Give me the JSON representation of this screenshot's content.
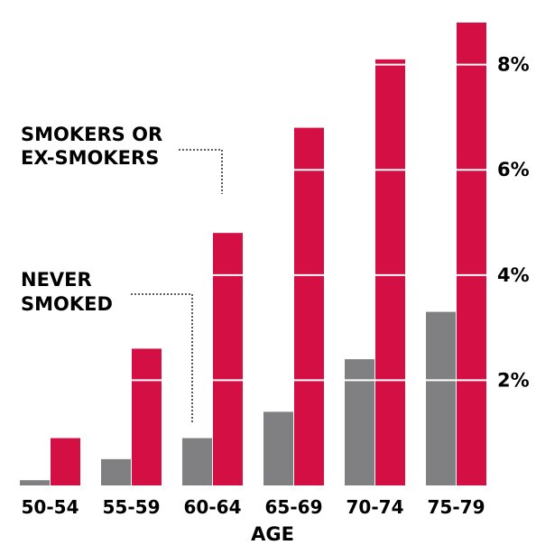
{
  "chart_data": {
    "type": "bar",
    "title": "",
    "xlabel": "AGE",
    "ylabel": "",
    "categories": [
      "50-54",
      "55-59",
      "60-64",
      "65-69",
      "70-74",
      "75-79"
    ],
    "series": [
      {
        "name": "NEVER SMOKED",
        "values": [
          0.1,
          0.5,
          0.9,
          1.4,
          2.4,
          3.3
        ],
        "color": "#808083"
      },
      {
        "name": "SMOKERS OR EX-SMOKERS",
        "values": [
          0.9,
          2.6,
          4.8,
          6.8,
          8.1,
          8.8
        ],
        "color": "#d40f44"
      }
    ],
    "ylim": [
      0,
      8.8
    ],
    "yticks": [
      2,
      4,
      6,
      8
    ],
    "ytick_labels": [
      "2%",
      "4%",
      "6%",
      "8%"
    ],
    "grid": false,
    "gridlines_on_bars": "white",
    "annotations": [
      {
        "text_lines": [
          "SMOKERS OR",
          "EX-SMOKERS"
        ],
        "points_to": "SMOKERS OR EX-SMOKERS"
      },
      {
        "text_lines": [
          "NEVER",
          "SMOKED"
        ],
        "points_to": "NEVER SMOKED"
      }
    ]
  }
}
